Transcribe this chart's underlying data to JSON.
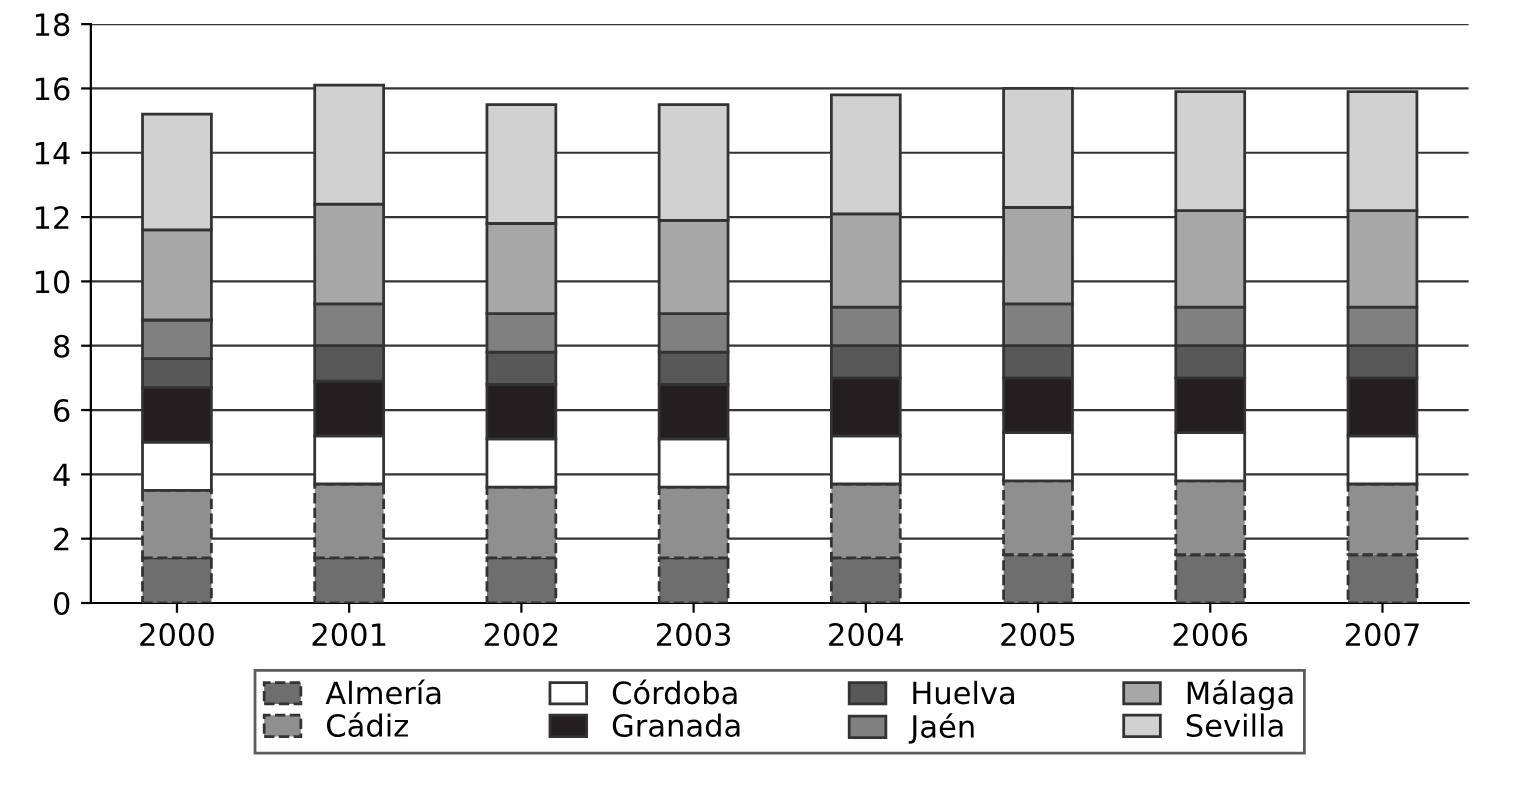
{
  "chart_data": {
    "type": "bar",
    "stacked": true,
    "categories": [
      "2000",
      "2001",
      "2002",
      "2003",
      "2004",
      "2005",
      "2006",
      "2007"
    ],
    "series": [
      {
        "name": "Almería",
        "color": "#6e6e6e",
        "line_style": "dashed",
        "values": [
          1.4,
          1.4,
          1.4,
          1.4,
          1.4,
          1.5,
          1.5,
          1.5
        ]
      },
      {
        "name": "Cádiz",
        "color": "#8f8f8f",
        "line_style": "dashed",
        "values": [
          2.1,
          2.3,
          2.2,
          2.2,
          2.3,
          2.3,
          2.3,
          2.2
        ]
      },
      {
        "name": "Córdoba",
        "color": "#ffffff",
        "values": [
          1.5,
          1.5,
          1.5,
          1.5,
          1.5,
          1.5,
          1.5,
          1.5
        ]
      },
      {
        "name": "Granada",
        "color": "#231f20",
        "values": [
          1.7,
          1.7,
          1.7,
          1.7,
          1.8,
          1.7,
          1.7,
          1.8
        ]
      },
      {
        "name": "Huelva",
        "color": "#585858",
        "values": [
          0.9,
          1.1,
          1.0,
          1.0,
          1.0,
          1.0,
          1.0,
          1.0
        ]
      },
      {
        "name": "Jaén",
        "color": "#808080",
        "values": [
          1.2,
          1.3,
          1.2,
          1.2,
          1.2,
          1.3,
          1.2,
          1.2
        ]
      },
      {
        "name": "Málaga",
        "color": "#a7a7a7",
        "values": [
          2.8,
          3.1,
          2.8,
          2.9,
          2.9,
          3.0,
          3.0,
          3.0
        ]
      },
      {
        "name": "Sevilla",
        "color": "#d1d1d1",
        "values": [
          3.6,
          3.7,
          3.7,
          3.6,
          3.7,
          3.7,
          3.7,
          3.7
        ]
      }
    ],
    "ylim": [
      0,
      18
    ],
    "yticks": [
      0,
      2,
      4,
      6,
      8,
      10,
      12,
      14,
      16,
      18
    ],
    "grid": "y",
    "legend": "bottom"
  }
}
